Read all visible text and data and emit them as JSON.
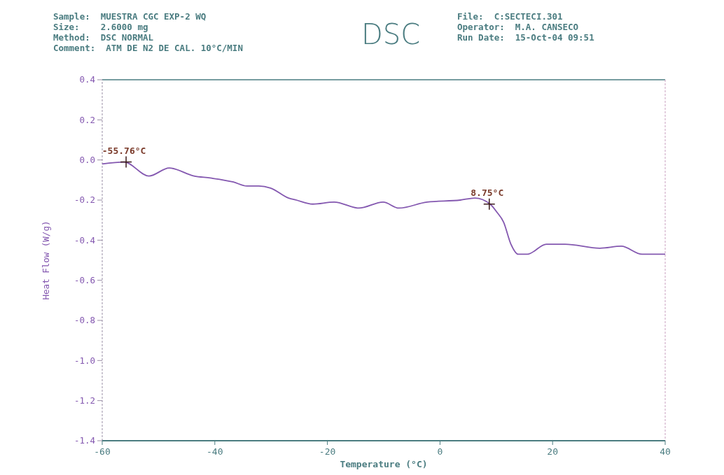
{
  "chart_data": {
    "type": "line",
    "title": "DSC",
    "xlabel": "Temperature (°C)",
    "ylabel": "Heat Flow (W/g)",
    "x": [
      -60,
      -56.1,
      -51.7,
      -48.1,
      -43.7,
      -40.8,
      -36.7,
      -34.3,
      -32.2,
      -30.1,
      -26.9,
      -25.5,
      -22.6,
      -18.8,
      -14.4,
      -10.1,
      -7.3,
      -2.3,
      3.6,
      6.2,
      8.9,
      10.1,
      11.3,
      12.6,
      13.9,
      15.5,
      18.9,
      22.2,
      28.4,
      32.2,
      35.9,
      40
    ],
    "series": [
      {
        "color": "#8458b0",
        "values": [
          -0.02,
          -0.01,
          -0.08,
          -0.04,
          -0.08,
          -0.09,
          -0.11,
          -0.13,
          -0.13,
          -0.14,
          -0.19,
          -0.2,
          -0.22,
          -0.21,
          -0.24,
          -0.21,
          -0.24,
          -0.21,
          -0.2,
          -0.19,
          -0.22,
          -0.26,
          -0.31,
          -0.42,
          -0.47,
          -0.47,
          -0.42,
          -0.42,
          -0.44,
          -0.43,
          -0.47,
          -0.47
        ]
      }
    ],
    "xlim": [
      -60,
      40
    ],
    "xticks": [
      -60,
      -40,
      -20,
      0,
      20,
      40
    ],
    "ylim": [
      -1.4,
      0.4
    ],
    "yticks": [
      {
        "value": 0.4,
        "label": "0.4"
      },
      {
        "value": 0.2,
        "label": "0.2"
      },
      {
        "value": 0,
        "label": "0.0"
      },
      {
        "value": -0.2,
        "label": "-0.2"
      },
      {
        "value": -0.4,
        "label": "-0.4"
      },
      {
        "value": -0.6,
        "label": "-0.6"
      },
      {
        "value": -0.8,
        "label": "-0.8"
      },
      {
        "value": -1,
        "label": "-1.0"
      },
      {
        "value": -1.2,
        "label": "-1.2"
      },
      {
        "value": -1.4,
        "label": "-1.4"
      }
    ],
    "annotations": [
      "Sample:  MUESTRA CGC EXP-2 WQ",
      "Size:    2.6000 mg",
      "Method:  DSC NORMAL",
      "Comment:  ATM DE N2 DE CAL. 10°C/MIN",
      "File:  C:SECTECI.301",
      "Operator:  M.A. CANSECO",
      "Run Date:  15-Oct-04 09:51",
      {
        "text": "-55.76°C",
        "x": -55.76,
        "y": -0.01
      },
      {
        "text": "8.75°C",
        "x": 8.75,
        "y": -0.22
      }
    ],
    "grid": false,
    "marker": "none",
    "line_style": "solid"
  }
}
